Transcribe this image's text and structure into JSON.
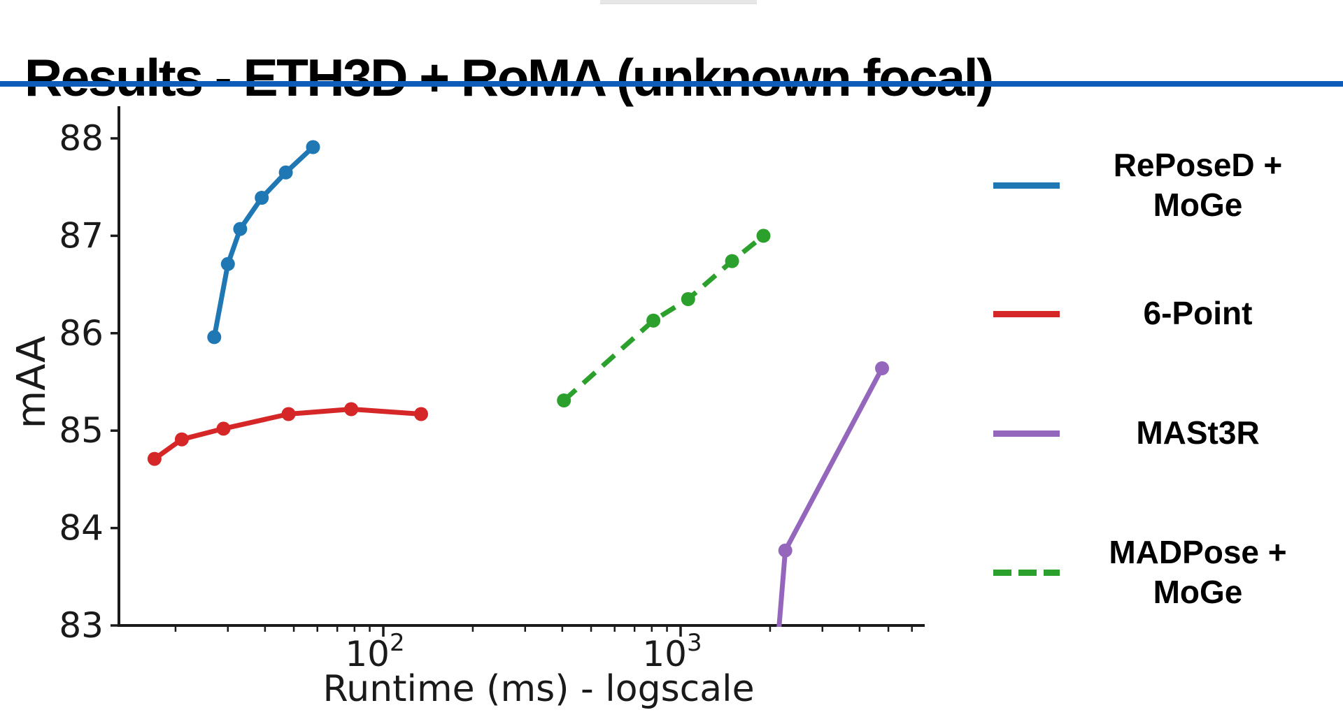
{
  "header": {
    "title": "Results - ETH3D + RoMA (unknown focal)",
    "rule_color": "#0c5cb8"
  },
  "chart_data": {
    "type": "line",
    "xlabel": "Runtime (ms) - logscale",
    "ylabel": "mAA",
    "x_scale": "log",
    "xlim": [
      13,
      6400
    ],
    "ylim": [
      83,
      88.3
    ],
    "grid": "off",
    "legend_position": "right-outside",
    "y_ticks": [
      83,
      84,
      85,
      86,
      87,
      88
    ],
    "x_major_ticks": [
      {
        "value": 100,
        "base": "10",
        "exponent": "2"
      },
      {
        "value": 1000,
        "base": "10",
        "exponent": "3"
      }
    ],
    "series": [
      {
        "name": "RePoseD + MoGe",
        "color": "#1f77b4",
        "style": "solid",
        "marker": "circle",
        "points": [
          [
            27,
            85.96
          ],
          [
            30,
            86.71
          ],
          [
            33,
            87.07
          ],
          [
            39,
            87.39
          ],
          [
            47,
            87.65
          ],
          [
            58,
            87.91
          ]
        ]
      },
      {
        "name": "6-Point",
        "color": "#d62728",
        "style": "solid",
        "marker": "circle",
        "points": [
          [
            17,
            84.71
          ],
          [
            21,
            84.91
          ],
          [
            29,
            85.02
          ],
          [
            48,
            85.17
          ],
          [
            78,
            85.22
          ],
          [
            134,
            85.17
          ]
        ]
      },
      {
        "name": "MASt3R",
        "color": "#9467bd",
        "style": "solid",
        "marker": "circle",
        "lead_in": [
          2080,
          82.5
        ],
        "points": [
          [
            2250,
            83.77
          ],
          [
            4760,
            85.64
          ]
        ]
      },
      {
        "name": "MADPose + MoGe",
        "color": "#2ca02c",
        "style": "dashed",
        "marker": "circle",
        "points": [
          [
            405,
            85.31
          ],
          [
            810,
            86.13
          ],
          [
            1060,
            86.35
          ],
          [
            1490,
            86.74
          ],
          [
            1900,
            87.0
          ]
        ]
      }
    ]
  },
  "legend": {
    "items": [
      {
        "lines": [
          "RePoseD +",
          "MoGe"
        ],
        "color": "#1f77b4",
        "dashed": false
      },
      {
        "lines": [
          "6-Point"
        ],
        "color": "#d62728",
        "dashed": false
      },
      {
        "lines": [
          "MASt3R"
        ],
        "color": "#9467bd",
        "dashed": false
      },
      {
        "lines": [
          "MADPose +",
          "MoGe"
        ],
        "color": "#2ca02c",
        "dashed": true
      }
    ]
  }
}
